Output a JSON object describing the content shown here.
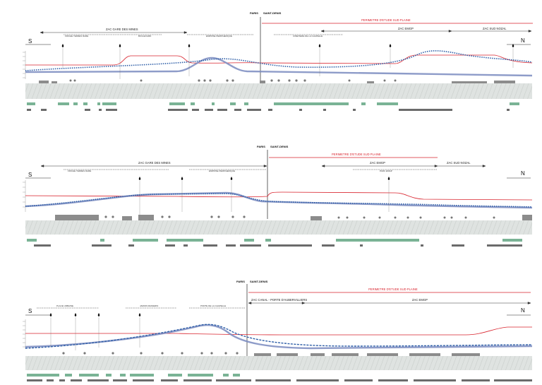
{
  "colors": {
    "terrain_line": "#d9232d",
    "track_blue": "#7a8bc0",
    "dotted_blue": "#2f5fa8",
    "ground": "#d6dad8",
    "green_bar": "#7ab395",
    "grey_bar": "#6b6b6b",
    "building": "#8c8c8c"
  },
  "panels": [
    {
      "paris_label": "PARIS",
      "saint_denis_label": "SAINT-DENIS",
      "south_label": "S",
      "north_label": "N",
      "perimeter_label": "PERIMETRE D'ETUDE SUD PLAINE",
      "zones": [
        {
          "label": "ZAC GARE DES MINES"
        },
        {
          "label": "ZAC EMGP"
        },
        {
          "label": "ZAC SUD NOZAL"
        }
      ],
      "sublabels": [
        {
          "label": "FRICHE TERRES RARE"
        },
        {
          "label": "BOULEVARD"
        },
        {
          "label": "EMPRISE PERIPHERIQUE"
        },
        {
          "label": "CIMETIERE DE LA CHAPELLE"
        }
      ]
    },
    {
      "paris_label": "PARIS",
      "saint_denis_label": "SAINT-DENIS",
      "south_label": "S",
      "north_label": "N",
      "perimeter_label": "PERIMETRE D'ETUDE SUD PLAINE",
      "zones": [
        {
          "label": "ZAC GARE DES MINES"
        },
        {
          "label": "ZAC EMGP"
        },
        {
          "label": "ZAC SUD NOZAL"
        }
      ],
      "sublabels": [
        {
          "label": "FRICHE TERRES RARE"
        },
        {
          "label": "EMPRISE PERIPHERIQUE"
        },
        {
          "label": "PARC EMGP"
        }
      ]
    },
    {
      "paris_label": "PARIS",
      "saint_denis_label": "SAINT-DENIS",
      "south_label": "S",
      "north_label": "N",
      "perimeter_label": "PERIMETRE D'ETUDE SUD PLAINE",
      "zones": [
        {
          "label": "ZAC CANAL - PORTE D'AUBERVILLIERS"
        },
        {
          "label": "ZAC EMGP"
        }
      ],
      "sublabels": [
        {
          "label": "PLACE URBAINE"
        },
        {
          "label": "JARDIN MANIERIN"
        },
        {
          "label": "PORTE DE LA CHAPELLE"
        }
      ]
    }
  ]
}
